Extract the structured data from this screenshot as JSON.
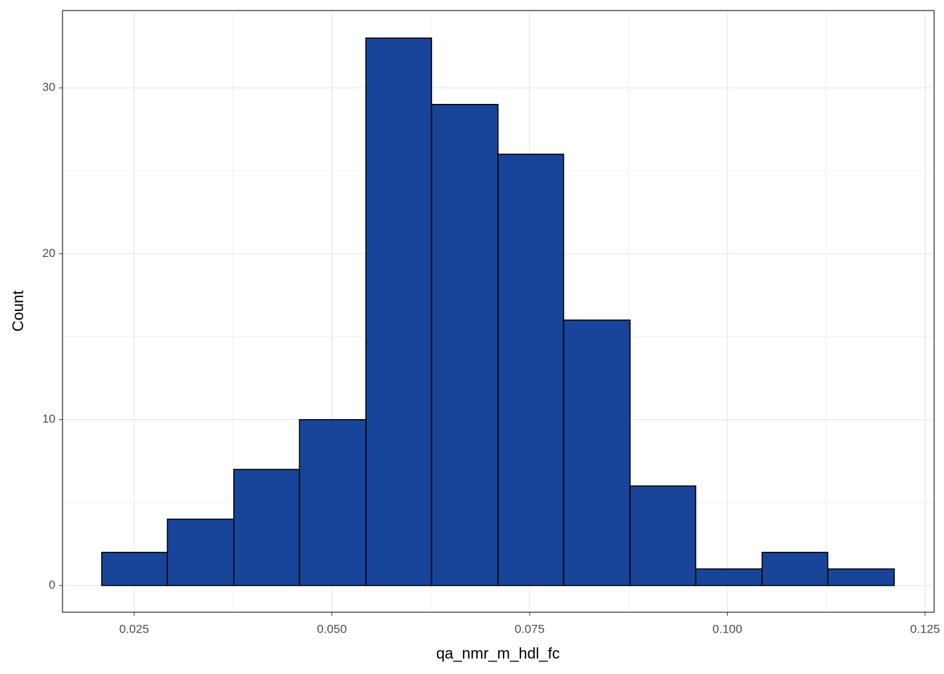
{
  "chart_data": {
    "type": "histogram",
    "x_label": "qa_nmr_m_hdl_fc",
    "y_label": "Count",
    "bins": [
      0.0209,
      0.0292,
      0.0376,
      0.0459,
      0.0543,
      0.0626,
      0.071,
      0.0793,
      0.0877,
      0.096,
      0.1044,
      0.1127,
      0.1211
    ],
    "values": [
      2,
      4,
      7,
      10,
      33,
      29,
      26,
      16,
      6,
      1,
      2,
      1
    ],
    "color": "#184499",
    "edge_color": "#000000",
    "xlim": [
      0.01594,
      0.12615
    ],
    "xticks": [
      {
        "value": 0.025,
        "label": "0.025"
      },
      {
        "value": 0.05,
        "label": "0.050"
      },
      {
        "value": 0.075,
        "label": "0.075"
      },
      {
        "value": 0.1,
        "label": "0.100"
      },
      {
        "value": 0.125,
        "label": "0.125"
      }
    ],
    "ylim": [
      -1.61,
      34.66
    ],
    "yticks": [
      0,
      10,
      20,
      30
    ],
    "grid": true
  }
}
